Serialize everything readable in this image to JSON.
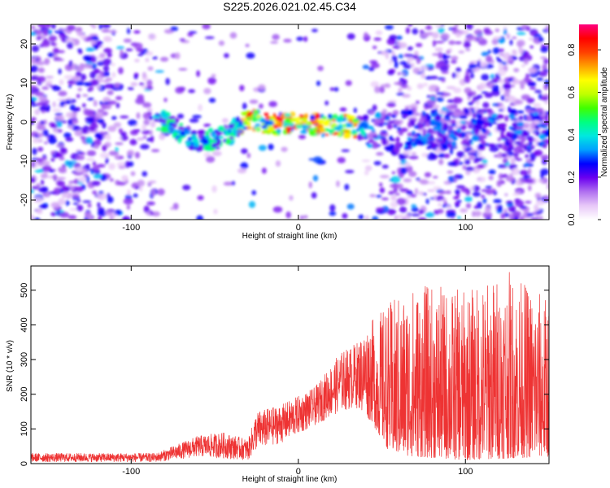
{
  "title": "S225.2026.021.02.45.C34",
  "chart_data": [
    {
      "type": "heatmap",
      "title": "S225.2026.021.02.45.C34",
      "xlabel": "Height of straight line (km)",
      "ylabel": "Frequency (Hz)",
      "xlim": [
        -160,
        150
      ],
      "ylim": [
        -25,
        25
      ],
      "xticks": [
        -100,
        0,
        100
      ],
      "yticks": [
        -20,
        -10,
        0,
        10,
        20
      ],
      "colorbar": {
        "label": "Normalized spectral amplitude",
        "range": [
          0,
          0.92
        ],
        "ticks": [
          0.0,
          0.2,
          0.4,
          0.6,
          0.8
        ],
        "tick_labels": [
          "0.0",
          "0.2",
          "0.4",
          "0.6",
          "0.8"
        ],
        "colors": [
          "#ffffff",
          "#e8c8f8",
          "#b070f0",
          "#6a00f0",
          "#0000ff",
          "#00a0ff",
          "#00e8e0",
          "#00ff80",
          "#40ff00",
          "#c0ff00",
          "#ffff00",
          "#ffa000",
          "#ff4000",
          "#ff0000",
          "#ff0080"
        ]
      },
      "ridge": [
        {
          "x": -80,
          "y": 0
        },
        {
          "x": -70,
          "y": -3
        },
        {
          "x": -60,
          "y": -5
        },
        {
          "x": -45,
          "y": -4
        },
        {
          "x": -30,
          "y": 1
        },
        {
          "x": -15,
          "y": -1
        },
        {
          "x": 0,
          "y": 0
        },
        {
          "x": 15,
          "y": -1
        },
        {
          "x": 30,
          "y": -1
        },
        {
          "x": 45,
          "y": -2
        }
      ]
    },
    {
      "type": "line",
      "xlabel": "Height of straight line (km)",
      "ylabel": "SNR (10 * v/v)",
      "xlim": [
        -160,
        150
      ],
      "ylim": [
        0,
        570
      ],
      "xticks": [
        -100,
        0,
        100
      ],
      "yticks": [
        0,
        100,
        200,
        300,
        400,
        500
      ],
      "color": "#ee3333",
      "envelope": [
        {
          "x": -160,
          "lo": 5,
          "hi": 30
        },
        {
          "x": -85,
          "lo": 5,
          "hi": 30
        },
        {
          "x": -75,
          "lo": 10,
          "hi": 50
        },
        {
          "x": -60,
          "lo": 20,
          "hi": 80
        },
        {
          "x": -45,
          "lo": 15,
          "hi": 90
        },
        {
          "x": -30,
          "lo": 10,
          "hi": 70
        },
        {
          "x": -25,
          "lo": 40,
          "hi": 150
        },
        {
          "x": -10,
          "lo": 60,
          "hi": 170
        },
        {
          "x": 10,
          "lo": 110,
          "hi": 220
        },
        {
          "x": 25,
          "lo": 150,
          "hi": 320
        },
        {
          "x": 35,
          "lo": 160,
          "hi": 350
        },
        {
          "x": 45,
          "lo": 110,
          "hi": 420
        },
        {
          "x": 55,
          "lo": 30,
          "hi": 470
        },
        {
          "x": 70,
          "lo": 20,
          "hi": 520
        },
        {
          "x": 100,
          "lo": 10,
          "hi": 500
        },
        {
          "x": 125,
          "lo": 15,
          "hi": 560
        },
        {
          "x": 150,
          "lo": 20,
          "hi": 480
        }
      ]
    }
  ]
}
